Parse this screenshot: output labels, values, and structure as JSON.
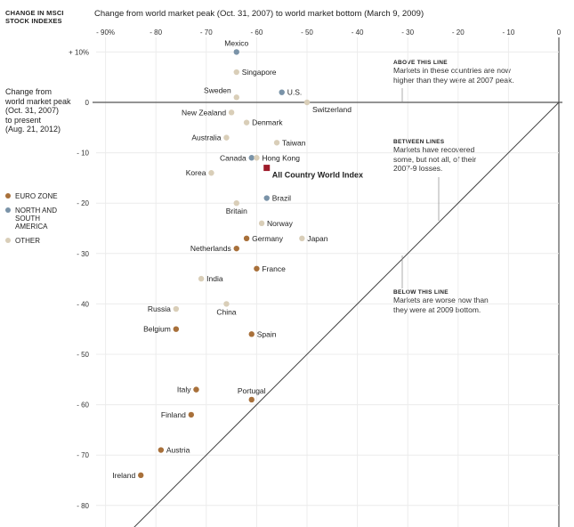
{
  "header": {
    "y_axis_title": [
      "CHANGE IN MSCI",
      "STOCK INDEXES"
    ],
    "x_axis_title": "Change from world market peak (Oct. 31, 2007) to world market bottom (March 9, 2009)"
  },
  "side_label": [
    "Change from",
    "world market peak",
    "(Oct. 31, 2007)",
    "to present",
    "(Aug. 21, 2012)"
  ],
  "legend": [
    {
      "label": "EURO ZONE",
      "color": "#a8703a"
    },
    {
      "label": "NORTH AND SOUTH AMERICA",
      "color": "#7a93a8"
    },
    {
      "label": "OTHER",
      "color": "#d9ceb8"
    }
  ],
  "annotations": {
    "above": {
      "head": "ABOVE THIS LINE",
      "body": [
        "Markets in these countries are now",
        "higher than they were at 2007 peak."
      ]
    },
    "between": {
      "head": "BETWEEN LINES",
      "body": [
        "Markets have recovered",
        "some, but not all, of their",
        "2007-9 losses."
      ]
    },
    "below": {
      "head": "BELOW THIS LINE",
      "body": [
        "Markets are worse now than",
        "they were at 2009 bottom."
      ]
    }
  },
  "chart_data": {
    "type": "scatter",
    "xlabel": "Change from world market peak (Oct. 31, 2007) to world market bottom (March 9, 2009)",
    "ylabel": "CHANGE IN MSCI STOCK INDEXES",
    "xlim": [
      -95,
      0
    ],
    "ylim": [
      -85,
      12
    ],
    "x_ticks": [
      -90,
      -80,
      -70,
      -60,
      -50,
      -40,
      -30,
      -20,
      -10,
      0
    ],
    "x_tick_labels": [
      "- 90%",
      "- 80",
      "- 70",
      "- 60",
      "- 50",
      "- 40",
      "- 30",
      "- 20",
      "- 10",
      "0"
    ],
    "y_ticks": [
      10,
      0,
      -10,
      -20,
      -30,
      -40,
      -50,
      -60,
      -70,
      -80
    ],
    "y_tick_labels": [
      "+ 10%",
      "0",
      "- 10",
      "- 20",
      "- 30",
      "- 40",
      "- 50",
      "- 60",
      "- 70",
      "- 80"
    ],
    "reference_lines": [
      "y = 0",
      "y = x"
    ],
    "points": [
      {
        "name": "Mexico",
        "x": -64,
        "y": 10,
        "group": "americas",
        "label_pos": "above"
      },
      {
        "name": "Singapore",
        "x": -64,
        "y": 6,
        "group": "other",
        "label_pos": "right"
      },
      {
        "name": "Sweden",
        "x": -64,
        "y": 1,
        "group": "other",
        "label_pos": "left-above"
      },
      {
        "name": "U.S.",
        "x": -55,
        "y": 2,
        "group": "americas",
        "label_pos": "right"
      },
      {
        "name": "Switzerland",
        "x": -50,
        "y": 0,
        "group": "other",
        "label_pos": "right-below"
      },
      {
        "name": "New Zealand",
        "x": -65,
        "y": -2,
        "group": "other",
        "label_pos": "left"
      },
      {
        "name": "Denmark",
        "x": -62,
        "y": -4,
        "group": "other",
        "label_pos": "right"
      },
      {
        "name": "Australia",
        "x": -66,
        "y": -7,
        "group": "other",
        "label_pos": "left"
      },
      {
        "name": "Taiwan",
        "x": -56,
        "y": -8,
        "group": "other",
        "label_pos": "right"
      },
      {
        "name": "Canada",
        "x": -61,
        "y": -11,
        "group": "americas",
        "label_pos": "left"
      },
      {
        "name": "Hong Kong",
        "x": -60,
        "y": -11,
        "group": "other",
        "label_pos": "right"
      },
      {
        "name": "All Country World Index",
        "x": -58,
        "y": -13,
        "group": "index",
        "label_pos": "right-below"
      },
      {
        "name": "Korea",
        "x": -69,
        "y": -14,
        "group": "other",
        "label_pos": "left"
      },
      {
        "name": "Brazil",
        "x": -58,
        "y": -19,
        "group": "americas",
        "label_pos": "right"
      },
      {
        "name": "Britain",
        "x": -64,
        "y": -20,
        "group": "other",
        "label_pos": "below"
      },
      {
        "name": "Norway",
        "x": -59,
        "y": -24,
        "group": "other",
        "label_pos": "right"
      },
      {
        "name": "Germany",
        "x": -62,
        "y": -27,
        "group": "euro",
        "label_pos": "right"
      },
      {
        "name": "Japan",
        "x": -51,
        "y": -27,
        "group": "other",
        "label_pos": "right"
      },
      {
        "name": "Netherlands",
        "x": -64,
        "y": -29,
        "group": "euro",
        "label_pos": "left"
      },
      {
        "name": "France",
        "x": -60,
        "y": -33,
        "group": "euro",
        "label_pos": "right"
      },
      {
        "name": "India",
        "x": -71,
        "y": -35,
        "group": "other",
        "label_pos": "right"
      },
      {
        "name": "Russia",
        "x": -76,
        "y": -41,
        "group": "other",
        "label_pos": "left"
      },
      {
        "name": "China",
        "x": -66,
        "y": -40,
        "group": "other",
        "label_pos": "below"
      },
      {
        "name": "Belgium",
        "x": -76,
        "y": -45,
        "group": "euro",
        "label_pos": "left"
      },
      {
        "name": "Spain",
        "x": -61,
        "y": -46,
        "group": "euro",
        "label_pos": "right"
      },
      {
        "name": "Italy",
        "x": -72,
        "y": -57,
        "group": "euro",
        "label_pos": "left"
      },
      {
        "name": "Portugal",
        "x": -61,
        "y": -59,
        "group": "euro",
        "label_pos": "above"
      },
      {
        "name": "Finland",
        "x": -73,
        "y": -62,
        "group": "euro",
        "label_pos": "left"
      },
      {
        "name": "Austria",
        "x": -79,
        "y": -69,
        "group": "euro",
        "label_pos": "right"
      },
      {
        "name": "Ireland",
        "x": -83,
        "y": -74,
        "group": "euro",
        "label_pos": "left"
      }
    ],
    "group_colors": {
      "euro": "#a8703a",
      "americas": "#7a93a8",
      "other": "#d9ceb8",
      "index": "#9e1b2a"
    }
  }
}
